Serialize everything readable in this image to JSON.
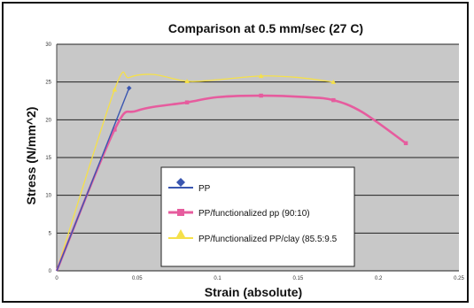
{
  "chart_data": {
    "type": "line",
    "title": "Comparison at 0.5 mm/sec (27 C)",
    "xlabel": "Strain (absolute)",
    "ylabel": "Stress (N/mm^2)",
    "xlim": [
      0,
      0.25
    ],
    "ylim": [
      0,
      30
    ],
    "x_ticks": [
      "0",
      "0.05",
      "0.1",
      "0.15",
      "0.2",
      "0.25"
    ],
    "y_ticks": [
      "0",
      "5",
      "10",
      "15",
      "20",
      "25",
      "30"
    ],
    "grid": "horizontal",
    "background": "#c8c8c8",
    "legend_position": "center",
    "series": [
      {
        "name": "PP",
        "color": "#3a56b0",
        "marker": "diamond",
        "points": [
          [
            0,
            0
          ],
          [
            0.045,
            24.2
          ]
        ],
        "marked": [
          [
            0.045,
            24.2
          ]
        ]
      },
      {
        "name": "PP/functionalized pp (90:10)",
        "color": "#e65c9e",
        "marker": "square",
        "points": [
          [
            0,
            0
          ],
          [
            0.036,
            18.7
          ],
          [
            0.05,
            21.2
          ],
          [
            0.081,
            22.3
          ],
          [
            0.1,
            23.0
          ],
          [
            0.127,
            23.2
          ],
          [
            0.155,
            23.0
          ],
          [
            0.172,
            22.6
          ],
          [
            0.19,
            21.0
          ],
          [
            0.217,
            16.9
          ]
        ],
        "marked": [
          [
            0.036,
            18.7
          ],
          [
            0.081,
            22.3
          ],
          [
            0.127,
            23.2
          ],
          [
            0.172,
            22.6
          ],
          [
            0.217,
            16.9
          ]
        ]
      },
      {
        "name": "PP/functionalized PP/clay (85.5:9.5",
        "color": "#f5e04a",
        "marker": "triangle",
        "points": [
          [
            0,
            0
          ],
          [
            0.036,
            24.0
          ],
          [
            0.045,
            25.6
          ],
          [
            0.06,
            26.0
          ],
          [
            0.081,
            25.1
          ],
          [
            0.1,
            25.3
          ],
          [
            0.127,
            25.8
          ],
          [
            0.15,
            25.6
          ],
          [
            0.172,
            25.0
          ]
        ],
        "marked": [
          [
            0.036,
            24.0
          ],
          [
            0.081,
            25.1
          ],
          [
            0.127,
            25.8
          ],
          [
            0.172,
            25.0
          ]
        ]
      }
    ]
  }
}
